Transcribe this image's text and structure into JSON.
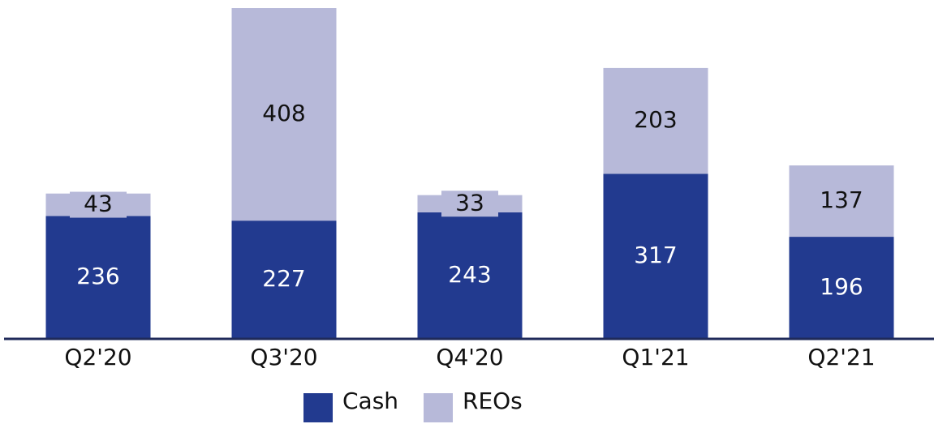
{
  "chart_data": {
    "type": "stacked_bar",
    "categories": [
      "Q2'20",
      "Q3'20",
      "Q4'20",
      "Q1'21",
      "Q2'21"
    ],
    "series": [
      {
        "name": "Cash",
        "color": "#223a8f",
        "values": [
          236,
          227,
          243,
          317,
          196
        ]
      },
      {
        "name": "REOs",
        "color": "#b7b9d9",
        "values": [
          43,
          408,
          33,
          203,
          137
        ]
      }
    ]
  }
}
